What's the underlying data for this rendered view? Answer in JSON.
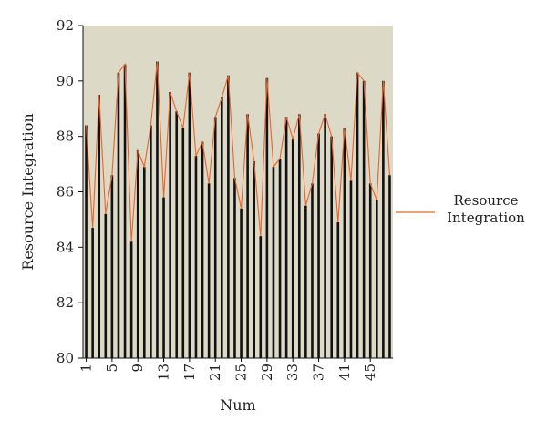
{
  "chart_data": {
    "type": "bar",
    "xlabel": "Num",
    "ylabel": "Resource Integration",
    "ylim": [
      80,
      92
    ],
    "yticks": [
      "80",
      "82",
      "84",
      "86",
      "88",
      "90",
      "92"
    ],
    "xticks": [
      "1",
      "5",
      "9",
      "13",
      "17",
      "21",
      "25",
      "29",
      "33",
      "37",
      "41",
      "45"
    ],
    "x": [
      1,
      2,
      3,
      4,
      5,
      6,
      7,
      8,
      9,
      10,
      11,
      12,
      13,
      14,
      15,
      16,
      17,
      18,
      19,
      20,
      21,
      22,
      23,
      24,
      25,
      26,
      27,
      28,
      29,
      30,
      31,
      32,
      33,
      34,
      35,
      36,
      37,
      38,
      39,
      40,
      41,
      42,
      43,
      44,
      45,
      46,
      47,
      48
    ],
    "series": [
      {
        "name": "Resource Integration",
        "type": "line",
        "values": [
          88.4,
          84.7,
          89.5,
          85.2,
          86.6,
          90.3,
          90.6,
          84.2,
          87.5,
          86.9,
          88.4,
          90.7,
          85.8,
          89.6,
          88.9,
          88.3,
          90.3,
          87.3,
          87.8,
          86.3,
          88.7,
          89.4,
          90.2,
          86.5,
          85.4,
          88.8,
          87.1,
          84.4,
          90.1,
          86.9,
          87.2,
          88.7,
          87.9,
          88.8,
          85.5,
          86.3,
          88.1,
          88.8,
          88.0,
          84.9,
          88.3,
          86.4,
          90.3,
          90.0,
          86.3,
          85.7,
          90.0,
          86.6
        ]
      },
      {
        "name": "",
        "type": "bar",
        "values": [
          88.4,
          84.7,
          89.5,
          85.2,
          86.6,
          90.3,
          90.6,
          84.2,
          87.5,
          86.9,
          88.4,
          90.7,
          85.8,
          89.6,
          88.9,
          88.3,
          90.3,
          87.3,
          87.8,
          86.3,
          88.7,
          89.4,
          90.2,
          86.5,
          85.4,
          88.8,
          87.1,
          84.4,
          90.1,
          86.9,
          87.2,
          88.7,
          87.9,
          88.8,
          85.5,
          86.3,
          88.1,
          88.8,
          88.0,
          84.9,
          88.3,
          86.4,
          90.3,
          90.0,
          86.3,
          85.7,
          90.0,
          86.6
        ]
      }
    ],
    "legend": {
      "position": "right",
      "entries": [
        "Resource Integration"
      ]
    },
    "grid": false,
    "colors": {
      "plot_background": "#dcd9c6",
      "bar": "#111111",
      "line": "#e8642c"
    }
  }
}
